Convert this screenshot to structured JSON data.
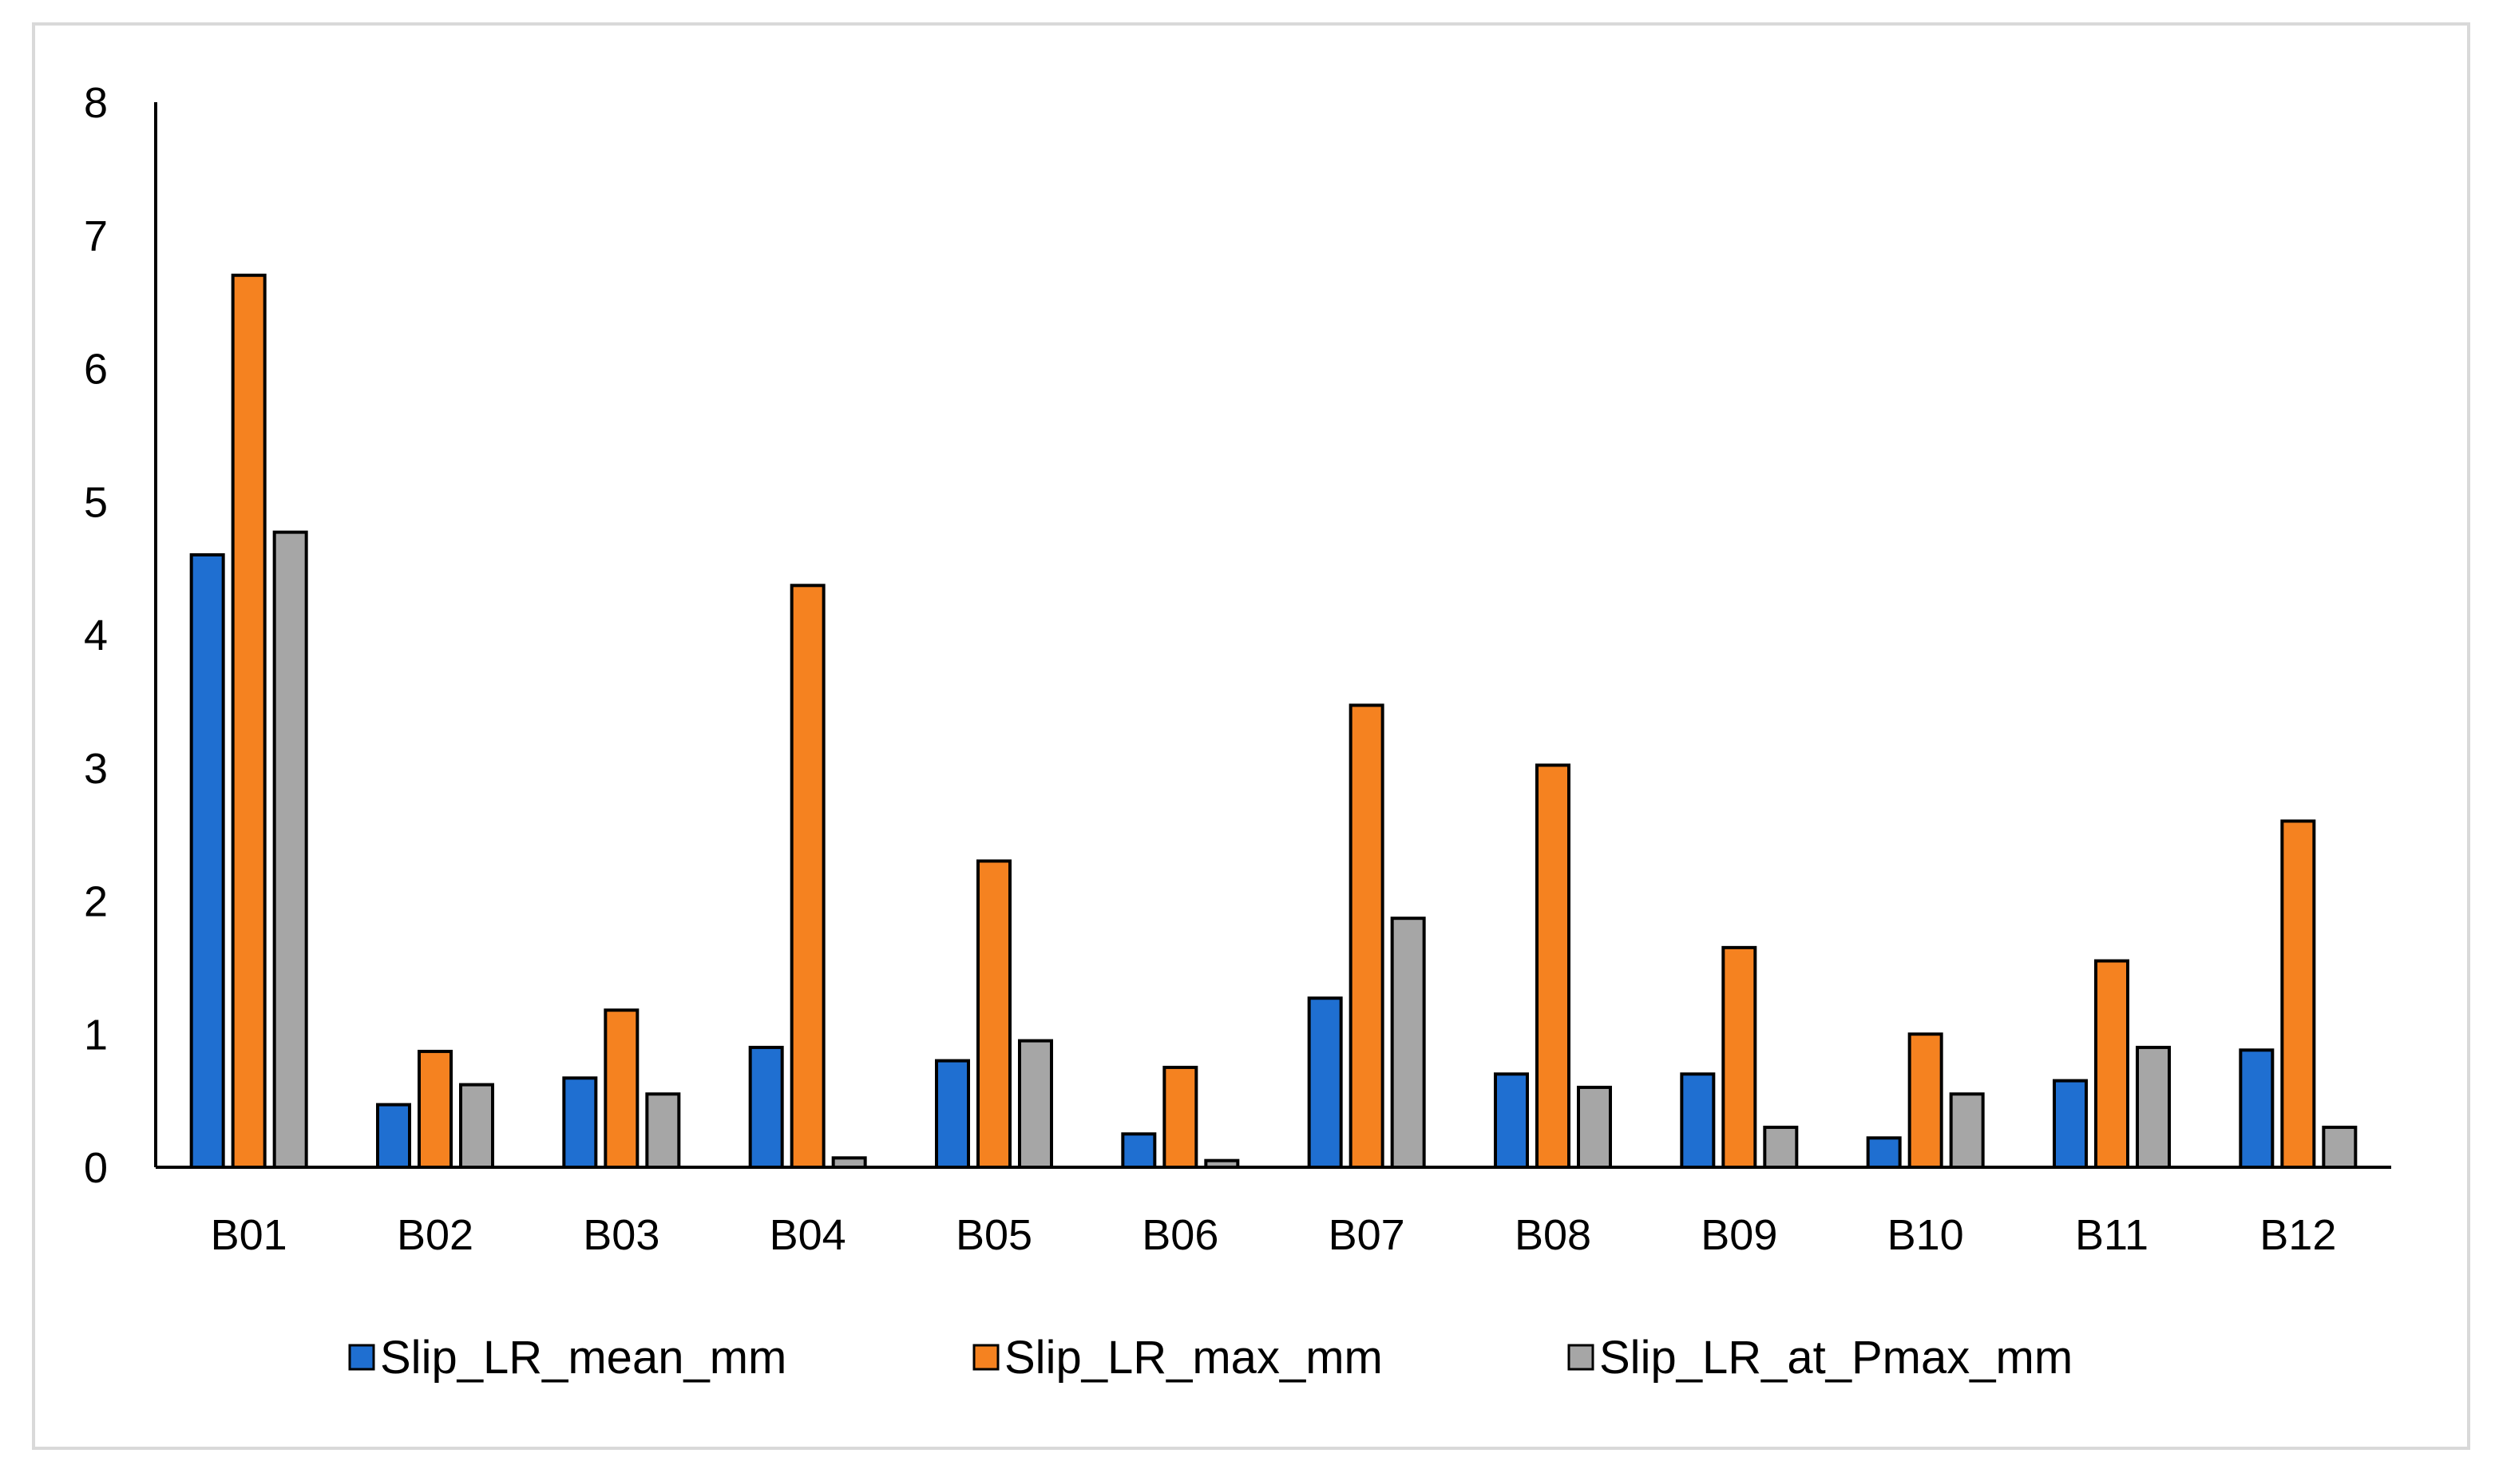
{
  "chart_data": {
    "type": "bar",
    "title": "",
    "xlabel": "",
    "ylabel": "",
    "ylim": [
      0,
      8
    ],
    "yticks": [
      0,
      1,
      2,
      3,
      4,
      5,
      6,
      7,
      8
    ],
    "grid": false,
    "legend_position": "bottom",
    "categories": [
      "B01",
      "B02",
      "B03",
      "B04",
      "B05",
      "B06",
      "B07",
      "B08",
      "B09",
      "B10",
      "B11",
      "B12"
    ],
    "series": [
      {
        "name": "Slip_LR_mean_mm",
        "color": "#1f6fd1",
        "values": [
          4.6,
          0.47,
          0.67,
          0.9,
          0.8,
          0.25,
          1.27,
          0.7,
          0.7,
          0.22,
          0.65,
          0.88
        ]
      },
      {
        "name": "Slip_LR_max_mm",
        "color": "#f58220",
        "values": [
          6.7,
          0.87,
          1.18,
          4.37,
          2.3,
          0.75,
          3.47,
          3.02,
          1.65,
          1.0,
          1.55,
          2.6
        ]
      },
      {
        "name": "Slip_LR_at_Pmax_mm",
        "color": "#a6a6a6",
        "values": [
          4.77,
          0.62,
          0.55,
          0.07,
          0.95,
          0.05,
          1.87,
          0.6,
          0.3,
          0.55,
          0.9,
          0.3
        ]
      }
    ]
  }
}
